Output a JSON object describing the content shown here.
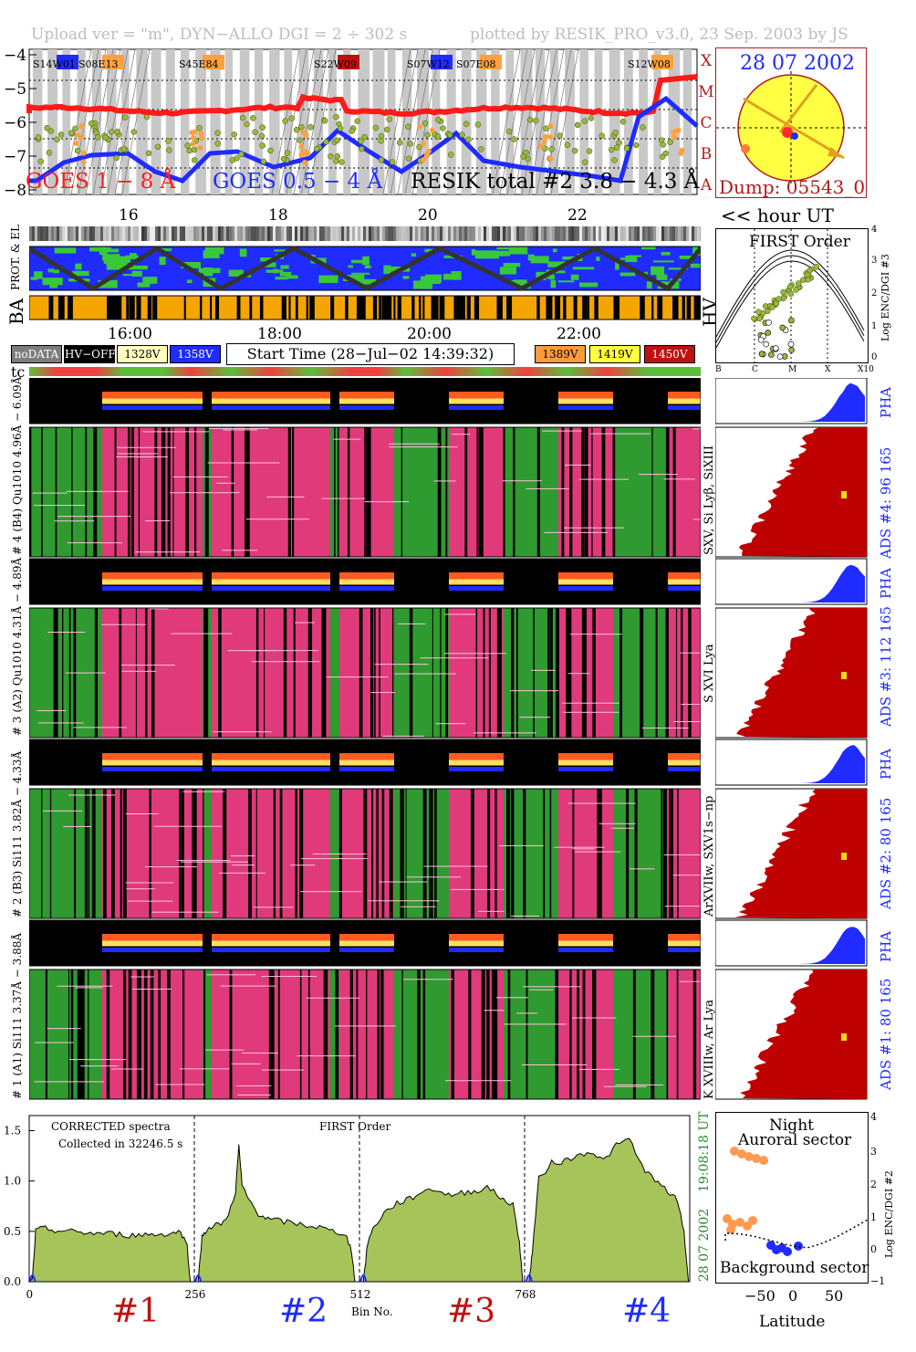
{
  "header": {
    "left": "Upload ver = \"m\", DYN−ALLO DGI =   2 ÷ 302 s",
    "right": "plotted by RESIK_PRO_v3.0, 23 Sep. 2003 by JS"
  },
  "lightcurve": {
    "y_ticks": [
      "−4",
      "−5",
      "−6",
      "−7",
      "−8"
    ],
    "class_labels": [
      "X",
      "M",
      "C",
      "B",
      "A"
    ],
    "legend_goes1": "GOES 1 − 8 Å",
    "legend_goes05": "GOES 0.5 − 4 Å",
    "legend_resik": "RESIK total #2  3.8 − 4.3 Å",
    "flares": [
      "S14W01",
      "S08E13",
      "S45E84",
      "S22W09",
      "S07W12",
      "S07E08",
      "S12W08"
    ],
    "hour_ticks": [
      "16",
      "18",
      "20",
      "22"
    ],
    "hour_unit": "<< hour UT",
    "colors": {
      "goes1": "#ff1a1a",
      "goes05": "#1f2bff",
      "resik": "#9ab83b",
      "flare_orange": "#ffa040"
    }
  },
  "sun": {
    "date": "28 07 2002",
    "dump": "Dump: 05543_0"
  },
  "status": {
    "prot_label": "PROT. & EL",
    "ba_label": "BA",
    "hv_label": "HV",
    "hour_ticks": [
      "16:00",
      "18:00",
      "20:00",
      "22:00"
    ]
  },
  "legend": {
    "nodata": "noDATA",
    "hvoff": "HV−OFF",
    "v1328": "1328V",
    "v1358": "1358V",
    "start": "Start Time (28−Jul−02 14:39:32)",
    "v1389": "1389V",
    "v1419": "1419V",
    "v1450": "1450V",
    "tc": "tc"
  },
  "first_order": {
    "title": "FIRST Order",
    "ylabel": "Log ENC/DGI #3",
    "y_ticks": [
      "0",
      "1",
      "2",
      "3",
      "4"
    ],
    "x_ticks": [
      "B",
      "C",
      "M",
      "X",
      "X10"
    ]
  },
  "channels": [
    {
      "range_label": "# 4 (B4) Qu1010 4.96Å − 6.09Å",
      "lines": "SXV, Si Lyβ, SiXIII",
      "ads": "ADS #4:   96 165",
      "pha": "PHA"
    },
    {
      "range_label": "# 3 (A2) Qu1010 4.31Å − 4.89Å",
      "lines": "S XVI Lya",
      "ads": "ADS #3:   112 165",
      "pha": "PHA"
    },
    {
      "range_label": "# 2 (B3) Si111  3.82Å − 4.33Å",
      "lines": "ArXVIIw, SXV1s−np",
      "ads": "ADS #2:   80 165",
      "pha": "PHA"
    },
    {
      "range_label": "# 1 (A1) Si111  3.37Å − 3.88Å",
      "lines": "K XVIIIw, Ar Lya",
      "ads": "ADS #1:   80 165",
      "pha": "PHA"
    }
  ],
  "chart_data": {
    "type": "area",
    "title": "FIRST Order",
    "annotation_1": "CORRECTED spectra",
    "annotation_2": "Collected in 32246.5 s",
    "xlabel": "Bin No.",
    "x_ticks": [
      "0",
      "256",
      "512",
      "768"
    ],
    "y_ticks": [
      "0.0",
      "0.5",
      "1.0",
      "1.5"
    ],
    "xlim": [
      0,
      1024
    ],
    "ylim": [
      0,
      1.65
    ],
    "channel_labels": [
      "#1",
      "#2",
      "#3",
      "#4"
    ],
    "time_label": "28 07 2002",
    "utc_label": "19:08:18 UT",
    "fill": "#a6c45a",
    "series": [
      {
        "x": [
          0,
          5,
          10,
          20,
          40,
          60,
          80,
          100,
          120,
          140,
          160,
          180,
          200,
          220,
          235,
          245,
          250
        ],
        "values": [
          0.0,
          0.03,
          0.5,
          0.53,
          0.51,
          0.5,
          0.49,
          0.48,
          0.48,
          0.47,
          0.46,
          0.47,
          0.47,
          0.48,
          0.5,
          0.35,
          0.0
        ]
      },
      {
        "x": [
          262,
          268,
          275,
          290,
          305,
          320,
          325,
          330,
          340,
          355,
          370,
          390,
          410,
          430,
          450,
          470,
          490,
          500,
          505
        ],
        "values": [
          0.0,
          0.45,
          0.52,
          0.56,
          0.6,
          0.9,
          1.35,
          0.95,
          0.82,
          0.68,
          0.62,
          0.6,
          0.58,
          0.56,
          0.54,
          0.5,
          0.48,
          0.3,
          0.0
        ]
      },
      {
        "x": [
          518,
          525,
          535,
          550,
          570,
          590,
          610,
          630,
          650,
          670,
          690,
          710,
          730,
          750,
          760,
          765
        ],
        "values": [
          0.0,
          0.4,
          0.55,
          0.68,
          0.78,
          0.82,
          0.9,
          0.92,
          0.86,
          0.88,
          0.9,
          0.94,
          0.84,
          0.76,
          0.4,
          0.0
        ]
      },
      {
        "x": [
          775,
          780,
          790,
          810,
          830,
          850,
          870,
          890,
          910,
          930,
          950,
          970,
          990,
          1005,
          1015,
          1022
        ],
        "values": [
          0.0,
          0.3,
          1.02,
          1.18,
          1.2,
          1.25,
          1.3,
          1.2,
          1.35,
          1.42,
          1.15,
          1.0,
          0.9,
          0.8,
          0.5,
          0.0
        ]
      }
    ]
  },
  "sector": {
    "title1": "Night",
    "title2": "Auroral sector",
    "bottom": "Background sector",
    "xlabel": "Latitude",
    "ylabel": "Log ENC/DGI #2",
    "x_ticks": [
      "−50",
      "0",
      "50"
    ],
    "y_ticks": [
      "−1",
      "0",
      "1",
      "2",
      "3",
      "4"
    ]
  }
}
